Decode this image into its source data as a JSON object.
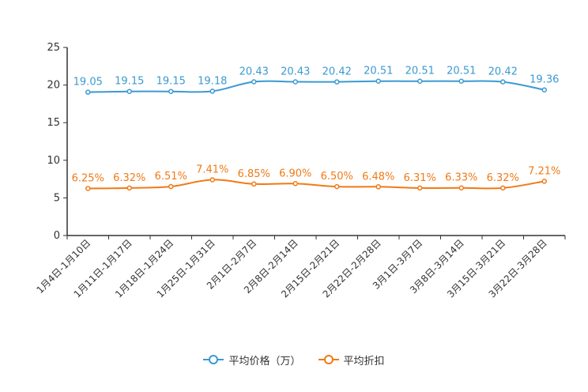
{
  "chart_data": {
    "type": "line",
    "title": "",
    "xlabel": "",
    "ylabel": "",
    "ylim": [
      0,
      25
    ],
    "yticks": [
      0,
      5,
      10,
      15,
      20,
      25
    ],
    "grid": false,
    "legend_position": "bottom-center",
    "categories": [
      "1月4日-1月10日",
      "1月11日-1月17日",
      "1月18日-1月24日",
      "1月25日-1月31日",
      "2月1日-2月7日",
      "2月8日-2月14日",
      "2月15日-2月21日",
      "2月22日-2月28日",
      "3月1日-3月7日",
      "3月8日-3月14日",
      "3月15日-3月21日",
      "3月22日-3月28日"
    ],
    "series": [
      {
        "name": "平均价格（万）",
        "color": "#3a9ad1",
        "values": [
          19.05,
          19.15,
          19.15,
          19.18,
          20.43,
          20.43,
          20.42,
          20.51,
          20.51,
          20.51,
          20.42,
          19.36
        ],
        "labels": [
          "19.05",
          "19.15",
          "19.15",
          "19.18",
          "20.43",
          "20.43",
          "20.42",
          "20.51",
          "20.51",
          "20.51",
          "20.42",
          "19.36"
        ]
      },
      {
        "name": "平均折扣",
        "color": "#f07a16",
        "values": [
          6.25,
          6.32,
          6.51,
          7.41,
          6.85,
          6.9,
          6.5,
          6.48,
          6.31,
          6.33,
          6.32,
          7.21
        ],
        "labels": [
          "6.25%",
          "6.32%",
          "6.51%",
          "7.41%",
          "6.85%",
          "6.90%",
          "6.50%",
          "6.48%",
          "6.31%",
          "6.33%",
          "6.32%",
          "7.21%"
        ]
      }
    ]
  }
}
